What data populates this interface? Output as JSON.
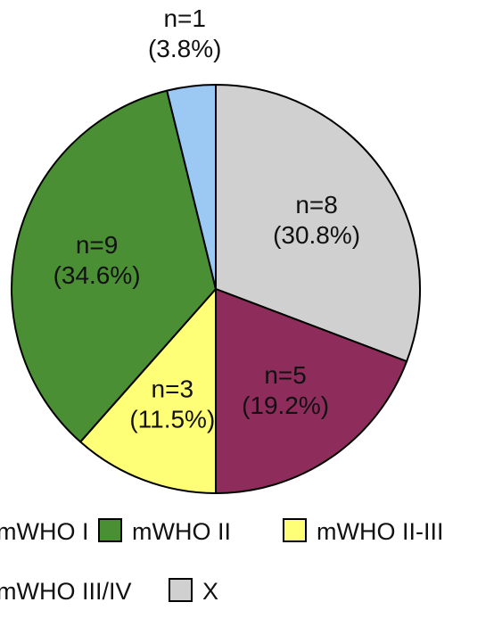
{
  "chart_data": {
    "type": "pie",
    "title": "",
    "start": "clockwise from the slice at the top",
    "slices": [
      {
        "name": "X",
        "count": 8,
        "percent": 30.8,
        "count_label": "n=8",
        "percent_label": "(30.8%)",
        "color": "#d0d0d0"
      },
      {
        "name": "mWHO III/IV",
        "count": 5,
        "percent": 19.2,
        "count_label": "n=5",
        "percent_label": "(19.2%)",
        "color": "#8e2c5b"
      },
      {
        "name": "mWHO II-III",
        "count": 3,
        "percent": 11.5,
        "count_label": "n=3",
        "percent_label": "(11.5%)",
        "color": "#ffff77"
      },
      {
        "name": "mWHO II",
        "count": 9,
        "percent": 34.6,
        "count_label": "n=9",
        "percent_label": "(34.6%)",
        "color": "#4a8f34"
      },
      {
        "name": "mWHO I",
        "count": 1,
        "percent": 3.8,
        "count_label": "n=1",
        "percent_label": "(3.8%)",
        "color": "#9cc9f4"
      }
    ],
    "legend": {
      "placement": "bottom",
      "entries": [
        {
          "label": "mWHO I",
          "color": "#9cc9f4"
        },
        {
          "label": "mWHO II",
          "color": "#4a8f34"
        },
        {
          "label": "mWHO II-III",
          "color": "#ffff77"
        },
        {
          "label": "mWHO III/IV",
          "color": "#8e2c5b"
        },
        {
          "label": "X",
          "color": "#d0d0d0"
        }
      ]
    }
  }
}
